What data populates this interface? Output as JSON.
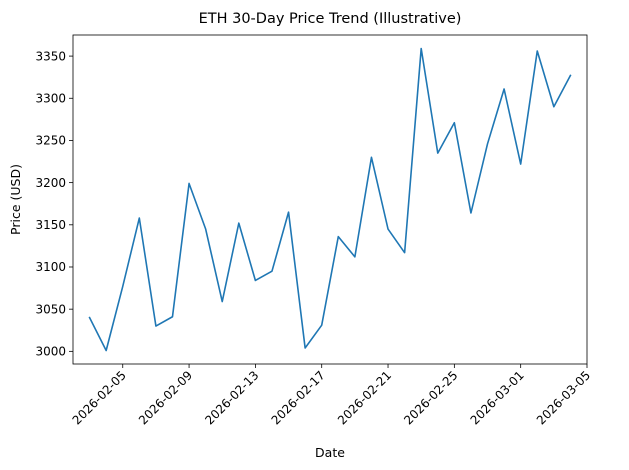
{
  "chart_data": {
    "type": "line",
    "title": "ETH 30-Day Price Trend (Illustrative)",
    "xlabel": "Date",
    "ylabel": "Price (USD)",
    "x_type": "date",
    "xlim": [
      "2026-02-02",
      "2026-03-05"
    ],
    "ylim": [
      2985,
      3375
    ],
    "grid": false,
    "x_ticks": [
      "2026-02-05",
      "2026-02-09",
      "2026-02-13",
      "2026-02-17",
      "2026-02-21",
      "2026-02-25",
      "2026-03-01",
      "2026-03-05"
    ],
    "y_ticks": [
      3000,
      3050,
      3100,
      3150,
      3200,
      3250,
      3300,
      3350
    ],
    "series": [
      {
        "color": "#1f77b4",
        "points": [
          {
            "x": "2026-02-03",
            "y": 3040
          },
          {
            "x": "2026-02-04",
            "y": 3001
          },
          {
            "x": "2026-02-05",
            "y": 3077
          },
          {
            "x": "2026-02-06",
            "y": 3158
          },
          {
            "x": "2026-02-07",
            "y": 3030
          },
          {
            "x": "2026-02-08",
            "y": 3041
          },
          {
            "x": "2026-02-09",
            "y": 3199
          },
          {
            "x": "2026-02-10",
            "y": 3145
          },
          {
            "x": "2026-02-11",
            "y": 3059
          },
          {
            "x": "2026-02-12",
            "y": 3152
          },
          {
            "x": "2026-02-13",
            "y": 3084
          },
          {
            "x": "2026-02-14",
            "y": 3095
          },
          {
            "x": "2026-02-15",
            "y": 3165
          },
          {
            "x": "2026-02-16",
            "y": 3004
          },
          {
            "x": "2026-02-17",
            "y": 3031
          },
          {
            "x": "2026-02-18",
            "y": 3136
          },
          {
            "x": "2026-02-19",
            "y": 3112
          },
          {
            "x": "2026-02-20",
            "y": 3230
          },
          {
            "x": "2026-02-21",
            "y": 3145
          },
          {
            "x": "2026-02-22",
            "y": 3117
          },
          {
            "x": "2026-02-23",
            "y": 3359
          },
          {
            "x": "2026-02-24",
            "y": 3235
          },
          {
            "x": "2026-02-25",
            "y": 3271
          },
          {
            "x": "2026-02-26",
            "y": 3164
          },
          {
            "x": "2026-02-27",
            "y": 3246
          },
          {
            "x": "2026-02-28",
            "y": 3311
          },
          {
            "x": "2026-03-01",
            "y": 3222
          },
          {
            "x": "2026-03-02",
            "y": 3356
          },
          {
            "x": "2026-03-03",
            "y": 3290
          },
          {
            "x": "2026-03-04",
            "y": 3327
          }
        ]
      }
    ]
  }
}
